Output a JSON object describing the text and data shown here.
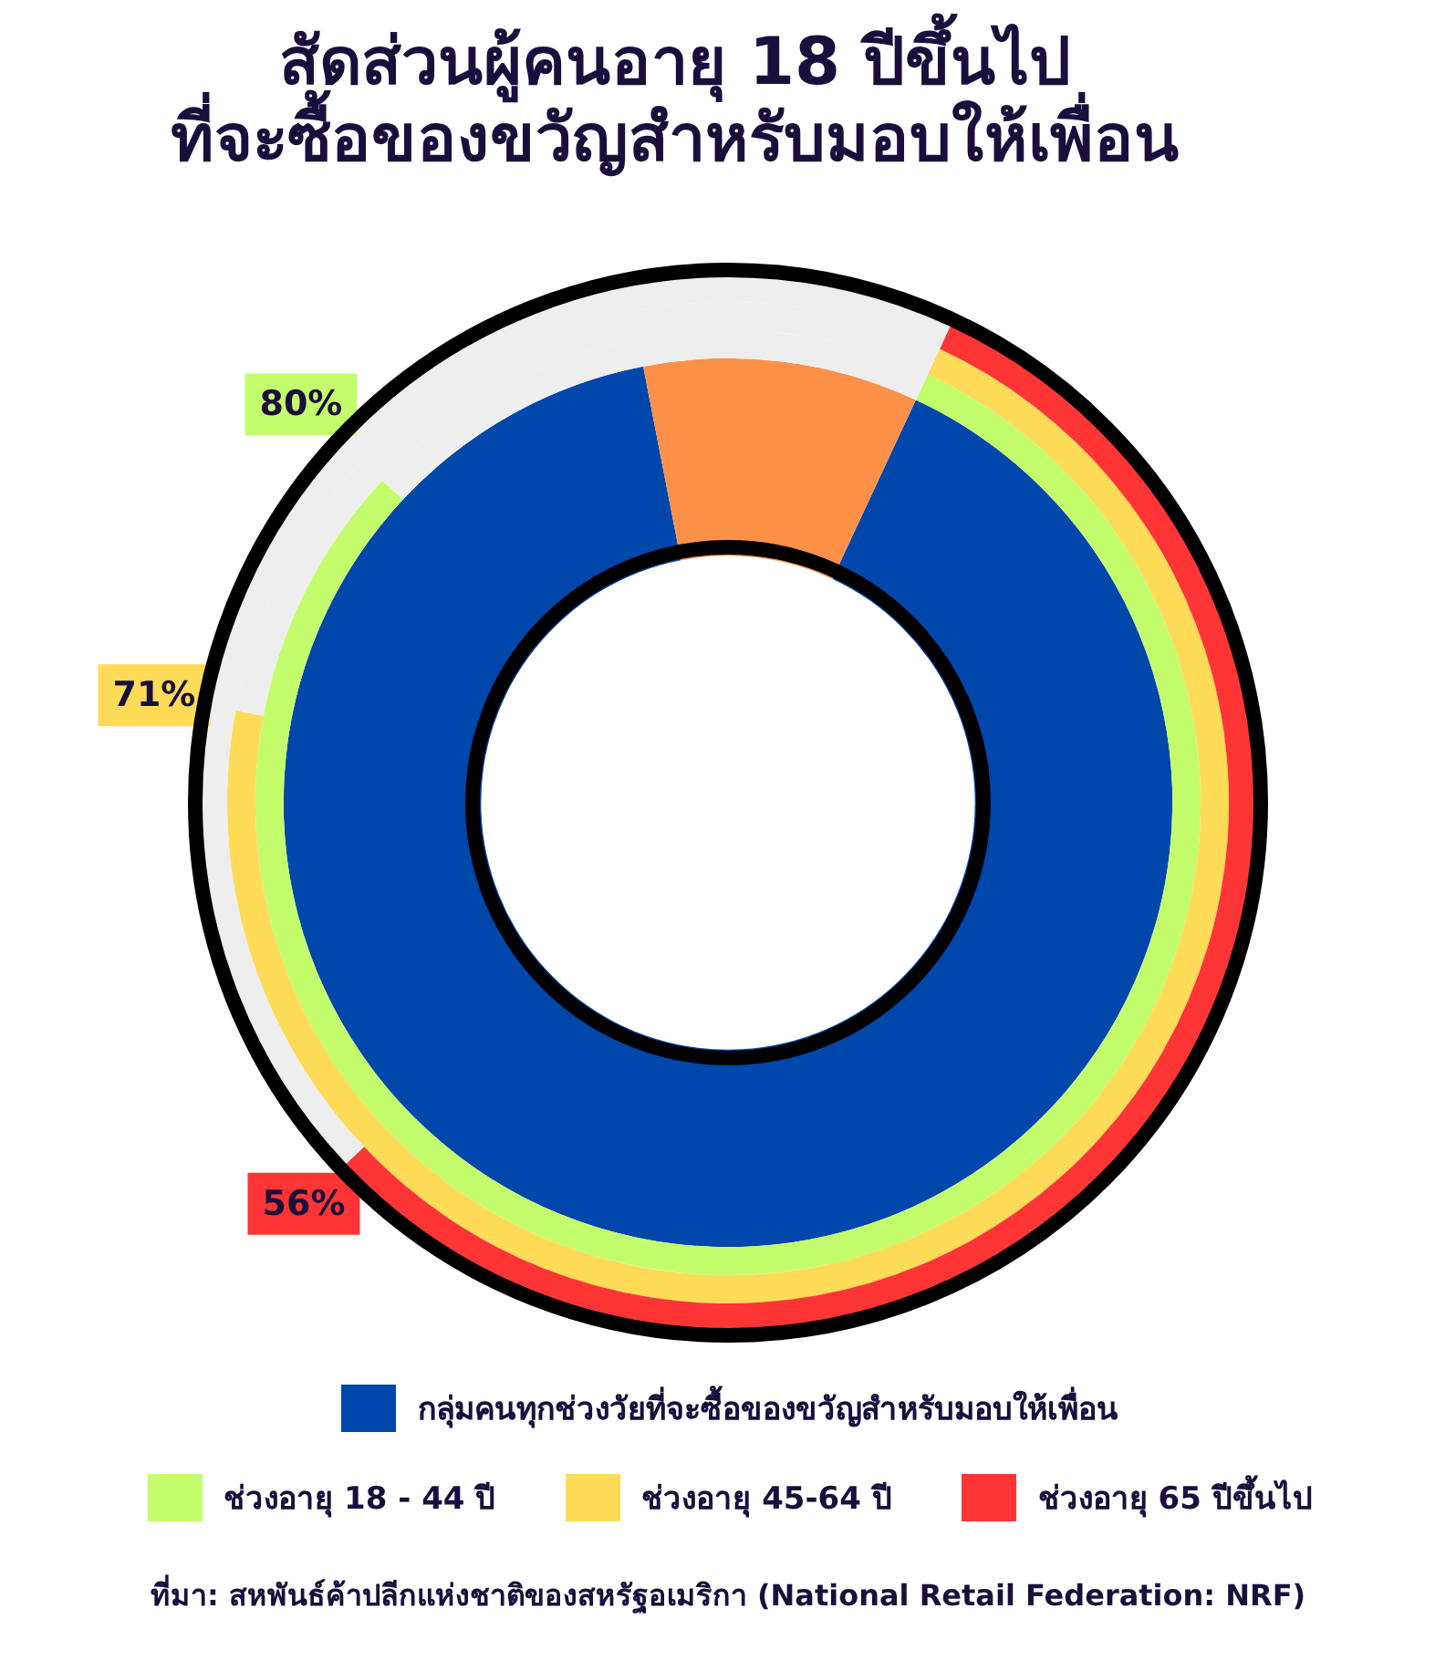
{
  "chart_data": {
    "type": "donut",
    "title": "สัดส่วนผู้คนอายุ 18 ปีขึ้นไป\nที่จะซื้อของขวัญสำหรับมอบให้เพื่อน",
    "categories": [
      null,
      null
    ],
    "series": [
      {
        "name": "กลุ่มคนทุกช่วงวัยที่จะซื้อของขวัญสำหรับมอบให้เพื่อน",
        "color": "#0047ab",
        "colors": [
          "#0047ab",
          "#fe9148"
        ],
        "values": [
          90,
          10
        ]
      },
      {
        "name": "ช่วงอายุ 18 - 44 ปี",
        "color": "#c4fd6c",
        "colors": [
          "#c4fd6c",
          "#eeeeee"
        ],
        "values": [
          80,
          20
        ],
        "value_labels": [
          "80%",
          null
        ]
      },
      {
        "name": "ช่วงอายุ 45-64 ปี",
        "color": "#ffdb58",
        "colors": [
          "#ffdb58",
          "#eeeeee"
        ],
        "values": [
          71,
          29
        ],
        "value_labels": [
          "71%",
          null
        ]
      },
      {
        "name": "ช่วงอายุ 65 ปีขึ้นไป",
        "color": "#ff3535",
        "colors": [
          "#ff3535",
          "#eeeeee"
        ],
        "values": [
          56,
          44
        ],
        "value_labels": [
          "56%",
          null
        ]
      }
    ],
    "legend": "bottom",
    "annotations": [
      "ที่มา: สหพันธ์ค้าปลีกแห่งชาติของสหรัฐอเมริกา (National Retail Federation: NRF)"
    ]
  }
}
